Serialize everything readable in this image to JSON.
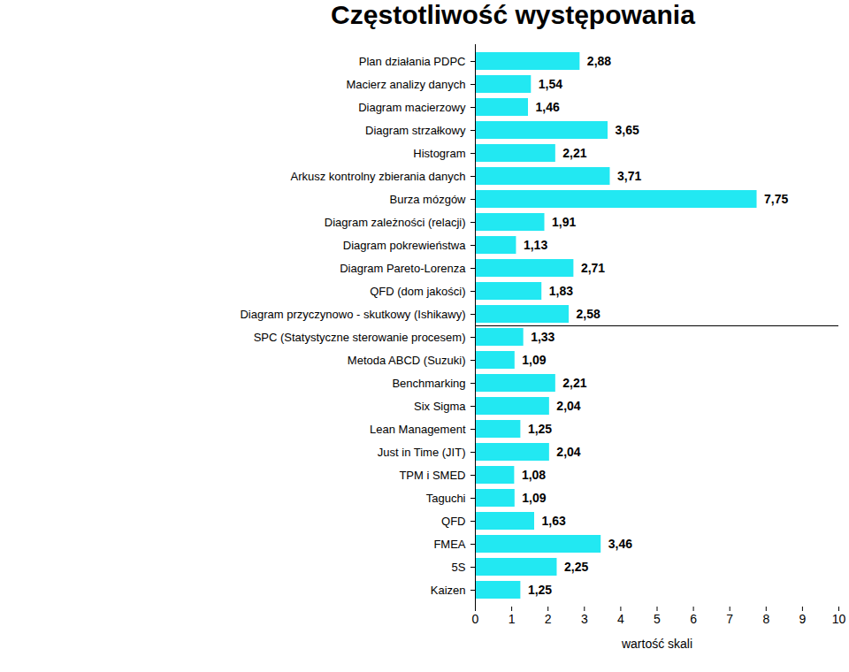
{
  "chart_data": {
    "type": "bar",
    "orientation": "horizontal",
    "title": "Częstotliwość występowania",
    "xlabel": "wartość skali",
    "categories": [
      "Plan działania PDPC",
      "Macierz analizy danych",
      "Diagram macierzowy",
      "Diagram strzałkowy",
      "Histogram",
      "Arkusz kontrolny zbierania danych",
      "Burza mózgów",
      "Diagram zależności (relacji)",
      "Diagram pokrewieństwa",
      "Diagram Pareto-Lorenza",
      "QFD (dom jakości)",
      "Diagram przyczynowo - skutkowy (Ishikawy)",
      "SPC (Statystyczne sterowanie procesem)",
      "Metoda ABCD (Suzuki)",
      "Benchmarking",
      "Six Sigma",
      "Lean Management",
      "Just in Time (JIT)",
      "TPM i SMED",
      "Taguchi",
      "QFD",
      "FMEA",
      "5S",
      "Kaizen"
    ],
    "values": [
      2.88,
      1.54,
      1.46,
      3.65,
      2.21,
      3.71,
      7.75,
      1.91,
      1.13,
      2.71,
      1.83,
      2.58,
      1.33,
      1.09,
      2.21,
      2.04,
      1.25,
      2.04,
      1.08,
      1.09,
      1.63,
      3.46,
      2.25,
      1.25
    ],
    "value_labels": [
      "2,88",
      "1,54",
      "1,46",
      "3,65",
      "2,21",
      "3,71",
      "7,75",
      "1,91",
      "1,13",
      "2,71",
      "1,83",
      "2,58",
      "1,33",
      "1,09",
      "2,21",
      "2,04",
      "1,25",
      "2,04",
      "1,08",
      "1,09",
      "1,63",
      "3,46",
      "2,25",
      "1,25"
    ],
    "data_labels": true,
    "color": "#22e8f2",
    "xlim": [
      0,
      10
    ],
    "xticks": [
      0,
      1,
      2,
      3,
      4,
      5,
      6,
      7,
      8,
      9,
      10
    ],
    "grid": false
  }
}
